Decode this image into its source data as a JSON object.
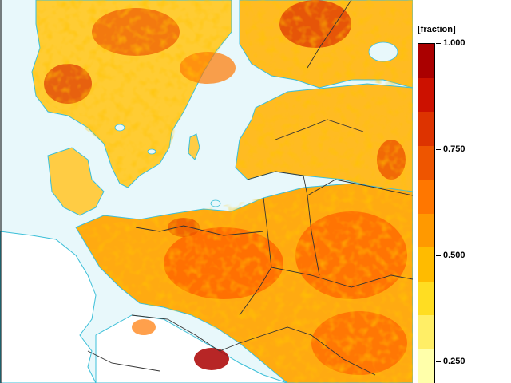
{
  "legend": {
    "title": "[fraction]",
    "labels": [
      "1.000",
      "0.750",
      "0.500",
      "0.250"
    ],
    "label_values": [
      1.0,
      0.75,
      0.5,
      0.25
    ],
    "min_value": 0.2,
    "max_value": 1.0,
    "colors": [
      "#aa0000",
      "#cc1100",
      "#dd3300",
      "#ee5500",
      "#ff7700",
      "#ff9900",
      "#ffbb00",
      "#ffdd22",
      "#ffee66",
      "#ffffaa"
    ]
  },
  "map": {
    "sea_color": "#e8f8fb",
    "coast_color": "#3bbfd8",
    "border_color": "#333333",
    "nodata_color": "#ffffff"
  }
}
